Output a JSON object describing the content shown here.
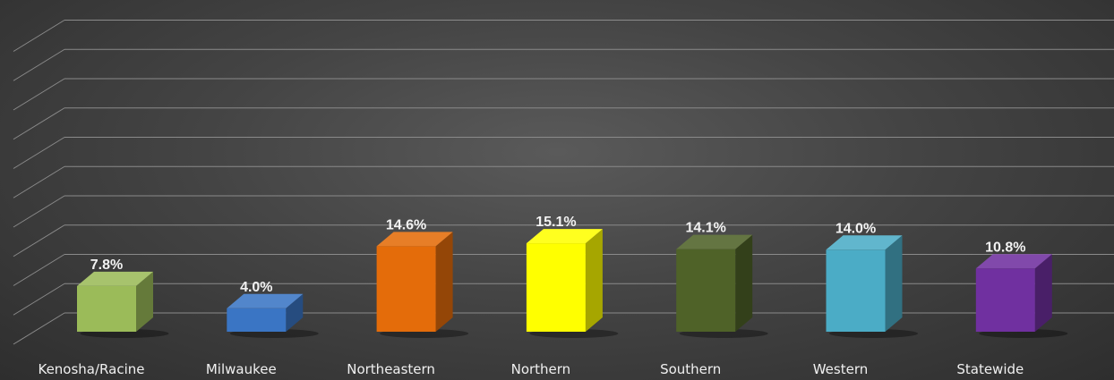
{
  "chart_data": {
    "type": "bar",
    "categories": [
      "Kenosha/Racine",
      "Milwaukee",
      "Northeastern",
      "Northern",
      "Southern",
      "Western",
      "Statewide"
    ],
    "values": [
      7.8,
      4.0,
      14.6,
      15.1,
      14.1,
      14.0,
      10.8
    ],
    "value_labels": [
      "7.8%",
      "4.0%",
      "14.6%",
      "15.1%",
      "14.1%",
      "14.0%",
      "10.8%"
    ],
    "colors": [
      "#9bbb59",
      "#3a75c4",
      "#e46c0a",
      "#ffff00",
      "#4f6228",
      "#4bacc6",
      "#7030a0"
    ],
    "ylim": [
      0,
      50
    ],
    "grid": true,
    "style": "3d-column"
  }
}
